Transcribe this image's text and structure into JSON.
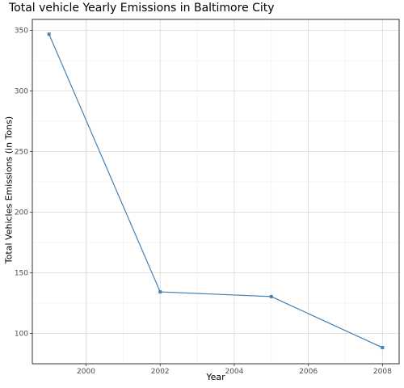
{
  "chart_data": {
    "type": "line",
    "title": "Total vehicle Yearly Emissions in Baltimore City",
    "xlabel": "Year",
    "ylabel": "Total Vehicles Emissions (in Tons)",
    "x": [
      1999,
      2002,
      2005,
      2008
    ],
    "series": [
      {
        "values": [
          346.8,
          134.3,
          130.4,
          88.3
        ]
      }
    ],
    "xlim": [
      1998.55,
      2008.45
    ],
    "ylim": [
      75,
      359
    ],
    "xticks": [
      2000,
      2002,
      2004,
      2006,
      2008
    ],
    "yticks": [
      100,
      150,
      200,
      250,
      300,
      350
    ],
    "grid": true,
    "legend": "none",
    "colors": {
      "line": "#4682b4",
      "point": "#4682b4",
      "grid_major": "#d9d9d9",
      "grid_minor": "#ececec",
      "border": "#333333"
    }
  }
}
